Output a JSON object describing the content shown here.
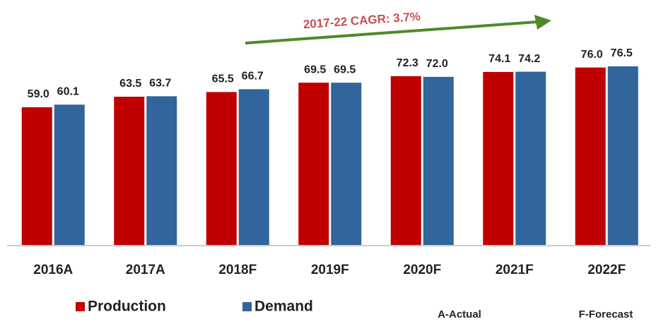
{
  "chart_data": {
    "type": "bar",
    "annotation": "2017-22 CAGR: 3.7%",
    "categories": [
      "2016A",
      "2017A",
      "2018F",
      "2019F",
      "2020F",
      "2021F",
      "2022F"
    ],
    "series": [
      {
        "name": "Production",
        "color": "#c00000",
        "values": [
          59.0,
          63.5,
          65.5,
          69.5,
          72.3,
          74.1,
          76.0
        ],
        "value_labels": [
          "59.0",
          "63.5",
          "65.5",
          "69.5",
          "72.3",
          "74.1",
          "76.0"
        ]
      },
      {
        "name": "Demand",
        "color": "#31659c",
        "values": [
          60.1,
          63.7,
          66.7,
          69.5,
          72.0,
          74.2,
          76.5
        ],
        "value_labels": [
          "60.1",
          "63.7",
          "66.7",
          "69.5",
          "72.0",
          "74.2",
          "76.5"
        ]
      }
    ],
    "notes": [
      "A-Actual",
      "F-Forecast"
    ]
  }
}
